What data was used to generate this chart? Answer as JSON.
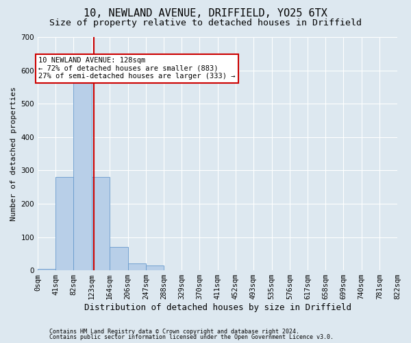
{
  "title1": "10, NEWLAND AVENUE, DRIFFIELD, YO25 6TX",
  "title2": "Size of property relative to detached houses in Driffield",
  "xlabel": "Distribution of detached houses by size in Driffield",
  "ylabel": "Number of detached properties",
  "footer1": "Contains HM Land Registry data © Crown copyright and database right 2024.",
  "footer2": "Contains public sector information licensed under the Open Government Licence v3.0.",
  "bin_edges": [
    0,
    41,
    82,
    123,
    164,
    206,
    247,
    288,
    329,
    370,
    411,
    452,
    493,
    535,
    576,
    617,
    658,
    699,
    740,
    781,
    822
  ],
  "bin_labels": [
    "0sqm",
    "41sqm",
    "82sqm",
    "123sqm",
    "164sqm",
    "206sqm",
    "247sqm",
    "288sqm",
    "329sqm",
    "370sqm",
    "411sqm",
    "452sqm",
    "493sqm",
    "535sqm",
    "576sqm",
    "617sqm",
    "658sqm",
    "699sqm",
    "740sqm",
    "781sqm",
    "822sqm"
  ],
  "bar_heights": [
    5,
    280,
    565,
    280,
    70,
    20,
    15,
    0,
    0,
    0,
    0,
    0,
    0,
    0,
    0,
    0,
    0,
    0,
    0,
    0
  ],
  "bar_color": "#b8cfe8",
  "bar_edge_color": "#6699cc",
  "property_size": 128,
  "vline_color": "#cc0000",
  "annotation_text": "10 NEWLAND AVENUE: 128sqm\n← 72% of detached houses are smaller (883)\n27% of semi-detached houses are larger (333) →",
  "annotation_box_facecolor": "#ffffff",
  "annotation_box_edgecolor": "#cc0000",
  "ylim": [
    0,
    700
  ],
  "yticks": [
    0,
    100,
    200,
    300,
    400,
    500,
    600,
    700
  ],
  "xlim": [
    0,
    822
  ],
  "background_color": "#dde8f0",
  "plot_background_color": "#dde8f0",
  "grid_color": "#ffffff",
  "title1_fontsize": 11,
  "title2_fontsize": 9.5,
  "xlabel_fontsize": 9,
  "ylabel_fontsize": 8,
  "tick_fontsize": 7.5,
  "annotation_fontsize": 7.5,
  "footer_fontsize": 6
}
